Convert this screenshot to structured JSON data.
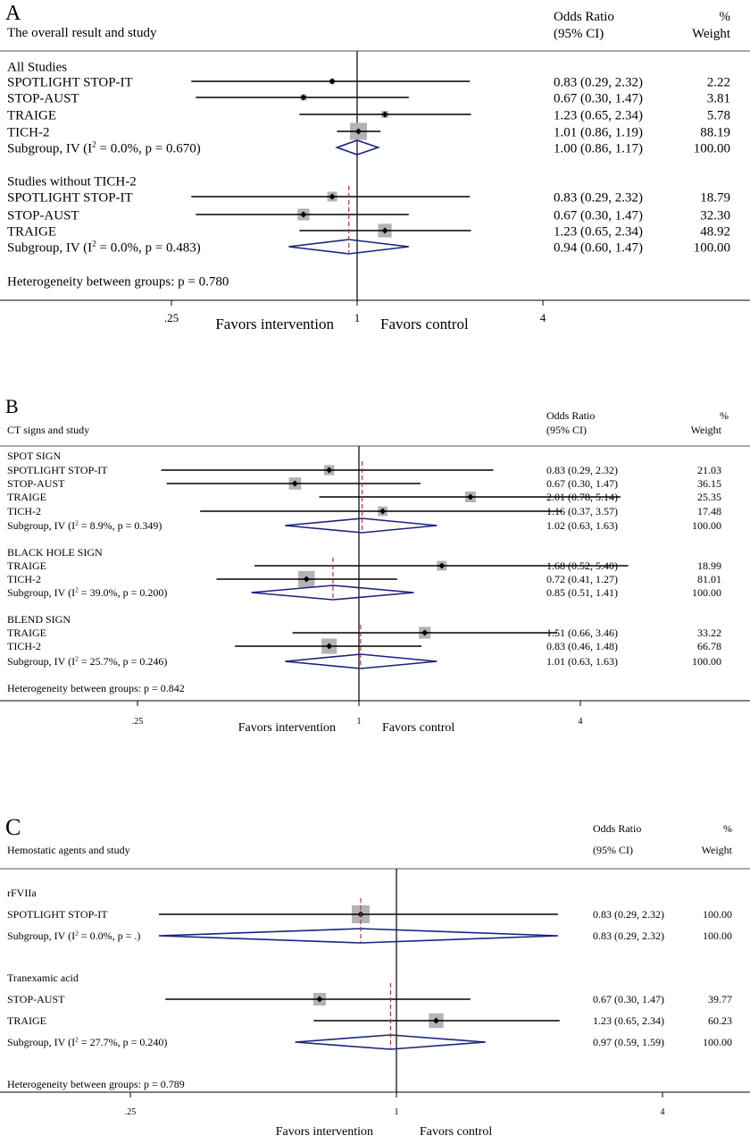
{
  "chart_data": [
    {
      "type": "forest",
      "panel_letter": "A",
      "title": "The overall result and study",
      "col_or": "Odds Ratio",
      "col_ci": "(95% CI)",
      "col_pct": "%",
      "col_weight": "Weight",
      "x_scale": "log",
      "x_ticks": [
        ".25",
        "1",
        "4"
      ],
      "x_tick_values": [
        0.25,
        1,
        4
      ],
      "favors_left": "Favors intervention",
      "favors_right": "Favors  control",
      "heterogeneity": "Heterogeneity between groups: p = 0.780",
      "groups": [
        {
          "name": "All Studies",
          "studies": [
            {
              "label": "SPOTLIGHT STOP-IT",
              "or": 0.83,
              "lo": 0.29,
              "hi": 2.32,
              "text": "0.83 (0.29, 2.32)",
              "weight": "2.22"
            },
            {
              "label": "STOP-AUST",
              "or": 0.67,
              "lo": 0.3,
              "hi": 1.47,
              "text": "0.67 (0.30, 1.47)",
              "weight": "3.81"
            },
            {
              "label": "TRAIGE",
              "or": 1.23,
              "lo": 0.65,
              "hi": 2.34,
              "text": "1.23 (0.65, 2.34)",
              "weight": "5.78"
            },
            {
              "label": "TICH-2",
              "or": 1.01,
              "lo": 0.86,
              "hi": 1.19,
              "text": "1.01 (0.86, 1.19)",
              "weight": "88.19"
            }
          ],
          "subgroup": {
            "label_pre": "Subgroup, IV (I",
            "label_post": " = 0.0%, p = 0.670)",
            "sup": "2",
            "or": 1.0,
            "lo": 0.86,
            "hi": 1.17,
            "text": "1.00 (0.86, 1.17)",
            "weight": "100.00"
          }
        },
        {
          "name": "Studies without TICH-2",
          "studies": [
            {
              "label": "SPOTLIGHT STOP-IT",
              "or": 0.83,
              "lo": 0.29,
              "hi": 2.32,
              "text": "0.83 (0.29, 2.32)",
              "weight": "18.79"
            },
            {
              "label": "STOP-AUST",
              "or": 0.67,
              "lo": 0.3,
              "hi": 1.47,
              "text": "0.67 (0.30, 1.47)",
              "weight": "32.30"
            },
            {
              "label": "TRAIGE",
              "or": 1.23,
              "lo": 0.65,
              "hi": 2.34,
              "text": "1.23 (0.65, 2.34)",
              "weight": "48.92"
            }
          ],
          "subgroup": {
            "label_pre": "Subgroup, IV (I",
            "label_post": " = 0.0%, p = 0.483)",
            "sup": "2",
            "or": 0.94,
            "lo": 0.6,
            "hi": 1.47,
            "text": "0.94 (0.60, 1.47)",
            "weight": "100.00"
          }
        }
      ]
    },
    {
      "type": "forest",
      "panel_letter": "B",
      "title": "CT signs and study",
      "col_or": "Odds Ratio",
      "col_ci": "(95% CI)",
      "col_pct": "%",
      "col_weight": "Weight",
      "x_scale": "log",
      "x_ticks": [
        ".25",
        "1",
        "4"
      ],
      "x_tick_values": [
        0.25,
        1,
        4
      ],
      "favors_left": "Favors intervention",
      "favors_right": "Favors  control",
      "heterogeneity": "Heterogeneity between groups: p = 0.842",
      "groups": [
        {
          "name": "SPOT SIGN",
          "studies": [
            {
              "label": "SPOTLIGHT STOP-IT",
              "or": 0.83,
              "lo": 0.29,
              "hi": 2.32,
              "text": "0.83 (0.29, 2.32)",
              "weight": "21.03"
            },
            {
              "label": "STOP-AUST",
              "or": 0.67,
              "lo": 0.3,
              "hi": 1.47,
              "text": "0.67 (0.30, 1.47)",
              "weight": "36.15"
            },
            {
              "label": "TRAIGE",
              "or": 2.01,
              "lo": 0.78,
              "hi": 5.14,
              "text": "2.01 (0.78, 5.14)",
              "weight": "25.35"
            },
            {
              "label": "TICH-2",
              "or": 1.16,
              "lo": 0.37,
              "hi": 3.57,
              "text": "1.16 (0.37, 3.57)",
              "weight": "17.48"
            }
          ],
          "subgroup": {
            "label_pre": "Subgroup, IV (I",
            "label_post": " = 8.9%, p = 0.349)",
            "sup": "2",
            "or": 1.02,
            "lo": 0.63,
            "hi": 1.63,
            "text": "1.02 (0.63, 1.63)",
            "weight": "100.00"
          }
        },
        {
          "name": "BLACK HOLE SIGN",
          "studies": [
            {
              "label": "TRAIGE",
              "or": 1.68,
              "lo": 0.52,
              "hi": 5.4,
              "text": "1.68 (0.52, 5.40)",
              "weight": "18.99"
            },
            {
              "label": "TICH-2",
              "or": 0.72,
              "lo": 0.41,
              "hi": 1.27,
              "text": "0.72 (0.41, 1.27)",
              "weight": "81.01"
            }
          ],
          "subgroup": {
            "label_pre": "Subgroup, IV (I",
            "label_post": " = 39.0%, p = 0.200)",
            "sup": "2",
            "or": 0.85,
            "lo": 0.51,
            "hi": 1.41,
            "text": "0.85 (0.51, 1.41)",
            "weight": "100.00"
          }
        },
        {
          "name": "BLEND SIGN",
          "studies": [
            {
              "label": "TRAIGE",
              "or": 1.51,
              "lo": 0.66,
              "hi": 3.46,
              "text": "1.51 (0.66, 3.46)",
              "weight": "33.22"
            },
            {
              "label": "TICH-2",
              "or": 0.83,
              "lo": 0.46,
              "hi": 1.48,
              "text": "0.83 (0.46, 1.48)",
              "weight": "66.78"
            }
          ],
          "subgroup": {
            "label_pre": "Subgroup, IV (I",
            "label_post": " = 25.7%, p = 0.246)",
            "sup": "2",
            "or": 1.01,
            "lo": 0.63,
            "hi": 1.63,
            "text": "1.01 (0.63, 1.63)",
            "weight": "100.00"
          }
        }
      ]
    },
    {
      "type": "forest",
      "panel_letter": "C",
      "title": "Hemostatic agents and study",
      "col_or": "Odds Ratio",
      "col_ci": "(95% CI)",
      "col_pct": "%",
      "col_weight": "Weight",
      "x_scale": "log",
      "x_ticks": [
        ".25",
        "1",
        "4"
      ],
      "x_tick_values": [
        0.25,
        1,
        4
      ],
      "favors_left": "Favors intervention",
      "favors_right": "Favors  control",
      "heterogeneity": "Heterogeneity between groups: p = 0.789",
      "groups": [
        {
          "name": "rFVIIa",
          "studies": [
            {
              "label": "SPOTLIGHT  STOP-IT",
              "or": 0.83,
              "lo": 0.29,
              "hi": 2.32,
              "text": "0.83 (0.29, 2.32)",
              "weight": "100.00"
            }
          ],
          "subgroup": {
            "label_pre": "Subgroup, IV (I",
            "label_post": " = 0.0%, p = .)",
            "sup": "2",
            "or": 0.83,
            "lo": 0.29,
            "hi": 2.32,
            "text": "0.83 (0.29, 2.32)",
            "weight": "100.00"
          }
        },
        {
          "name": "Tranexamic acid",
          "studies": [
            {
              "label": "STOP-AUST",
              "or": 0.67,
              "lo": 0.3,
              "hi": 1.47,
              "text": "0.67 (0.30, 1.47)",
              "weight": "39.77"
            },
            {
              "label": "TRAIGE",
              "or": 1.23,
              "lo": 0.65,
              "hi": 2.34,
              "text": "1.23 (0.65, 2.34)",
              "weight": "60.23"
            }
          ],
          "subgroup": {
            "label_pre": "Subgroup, IV (I",
            "label_post": " = 27.7%, p = 0.240)",
            "sup": "2",
            "or": 0.97,
            "lo": 0.59,
            "hi": 1.59,
            "text": "0.97 (0.59, 1.59)",
            "weight": "100.00"
          }
        }
      ]
    }
  ]
}
